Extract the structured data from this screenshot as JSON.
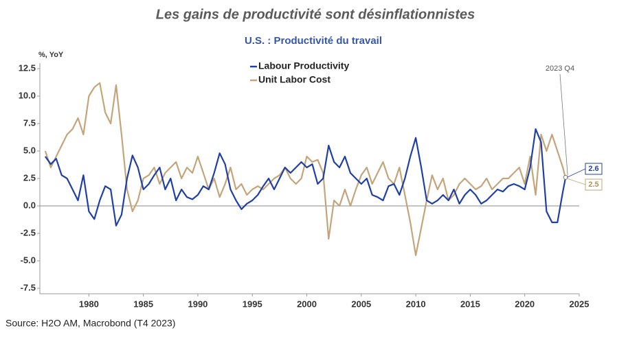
{
  "chart_data": {
    "type": "line",
    "title": "Les gains de productivité sont désinflationnistes",
    "subtitle": "U.S. : Productivité du travail",
    "y_label": "%, YoY",
    "annotation": "2023 Q4",
    "source": "Source: H2O AM, Macrobond (T4 2023)",
    "xlim": [
      1975.5,
      2025
    ],
    "xticks": [
      1980,
      1985,
      1990,
      1995,
      2000,
      2005,
      2010,
      2015,
      2020,
      2025
    ],
    "ylim": [
      -8,
      13
    ],
    "yticks": [
      12.5,
      {
        "value": 10,
        "label": "10.0"
      },
      7.5,
      {
        "value": 5,
        "label": "5.0"
      },
      2.5,
      {
        "value": 0,
        "label": "0.0"
      },
      -2.5,
      {
        "value": -5,
        "label": "-5.0"
      },
      -7.5
    ],
    "legend": "top",
    "x": [
      1976,
      1976.5,
      1977,
      1977.5,
      1978,
      1978.5,
      1979,
      1979.5,
      1980,
      1980.5,
      1981,
      1981.5,
      1982,
      1982.5,
      1983,
      1983.5,
      1984,
      1984.5,
      1985,
      1985.5,
      1986,
      1986.5,
      1987,
      1987.5,
      1988,
      1988.5,
      1989,
      1989.5,
      1990,
      1990.5,
      1991,
      1991.5,
      1992,
      1992.5,
      1993,
      1993.5,
      1994,
      1994.5,
      1995,
      1995.5,
      1996,
      1996.5,
      1997,
      1997.5,
      1998,
      1998.5,
      1999,
      1999.5,
      2000,
      2000.5,
      2001,
      2001.5,
      2002,
      2002.5,
      2003,
      2003.5,
      2004,
      2004.5,
      2005,
      2005.5,
      2006,
      2006.5,
      2007,
      2007.5,
      2008,
      2008.5,
      2009,
      2009.5,
      2010,
      2010.5,
      2011,
      2011.5,
      2012,
      2012.5,
      2013,
      2013.5,
      2014,
      2014.5,
      2015,
      2015.5,
      2016,
      2016.5,
      2017,
      2017.5,
      2018,
      2018.5,
      2019,
      2019.5,
      2020,
      2020.5,
      2021,
      2021.5,
      2022,
      2022.5,
      2023,
      2023.5,
      2023.75
    ],
    "series": [
      {
        "name": "Labour Productivity",
        "color": "#1f3fa6",
        "values": [
          4.5,
          3.8,
          4.3,
          2.8,
          2.5,
          1.5,
          0.5,
          2.8,
          -0.5,
          -1.2,
          0.5,
          1.8,
          1.5,
          -1.8,
          -0.8,
          2.5,
          4.6,
          3.5,
          1.5,
          2.0,
          2.8,
          3.5,
          1.5,
          2.5,
          0.5,
          1.5,
          0.8,
          0.6,
          1.0,
          1.8,
          1.5,
          3.0,
          4.8,
          3.8,
          1.5,
          0.5,
          -0.3,
          0.2,
          0.5,
          1.0,
          1.8,
          2.5,
          1.5,
          2.5,
          3.5,
          3.0,
          3.5,
          4.0,
          3.5,
          3.8,
          2.0,
          2.5,
          5.5,
          4.0,
          3.5,
          4.5,
          3.0,
          2.5,
          2.0,
          2.5,
          1.0,
          0.8,
          0.5,
          1.8,
          2.0,
          1.0,
          2.5,
          4.5,
          6.2,
          3.5,
          0.5,
          0.2,
          0.5,
          1.0,
          0.5,
          1.5,
          0.2,
          1.0,
          1.5,
          1.0,
          0.2,
          0.5,
          1.0,
          1.5,
          1.3,
          1.8,
          2.0,
          1.8,
          1.5,
          3.5,
          7.0,
          5.8,
          -0.5,
          -1.5,
          -1.5,
          1.3,
          2.6
        ]
      },
      {
        "name": "Unit Labor Cost",
        "color": "#c4a57a",
        "values": [
          5.0,
          3.5,
          4.5,
          5.5,
          6.5,
          7.0,
          8.0,
          6.5,
          10.0,
          10.8,
          11.2,
          8.5,
          7.5,
          11.0,
          6.5,
          1.5,
          -0.5,
          0.5,
          2.5,
          2.8,
          3.5,
          2.0,
          3.0,
          3.5,
          4.0,
          2.5,
          3.5,
          3.0,
          4.5,
          3.0,
          1.5,
          2.5,
          0.8,
          2.0,
          3.5,
          1.5,
          2.0,
          1.0,
          1.5,
          1.8,
          1.5,
          2.0,
          2.5,
          2.8,
          3.5,
          2.5,
          2.0,
          2.5,
          4.5,
          4.0,
          4.2,
          3.0,
          -3.0,
          0.5,
          0.0,
          1.5,
          0.0,
          1.5,
          2.8,
          3.5,
          2.0,
          3.0,
          4.0,
          2.5,
          2.0,
          3.5,
          1.0,
          -1.5,
          -4.5,
          -2.0,
          0.5,
          2.8,
          1.5,
          2.5,
          0.5,
          1.0,
          2.0,
          2.5,
          2.0,
          1.5,
          1.8,
          2.5,
          1.5,
          2.0,
          2.5,
          2.5,
          3.0,
          3.5,
          2.0,
          4.5,
          1.0,
          6.5,
          5.0,
          6.5,
          5.0,
          3.5,
          2.5
        ]
      }
    ]
  }
}
